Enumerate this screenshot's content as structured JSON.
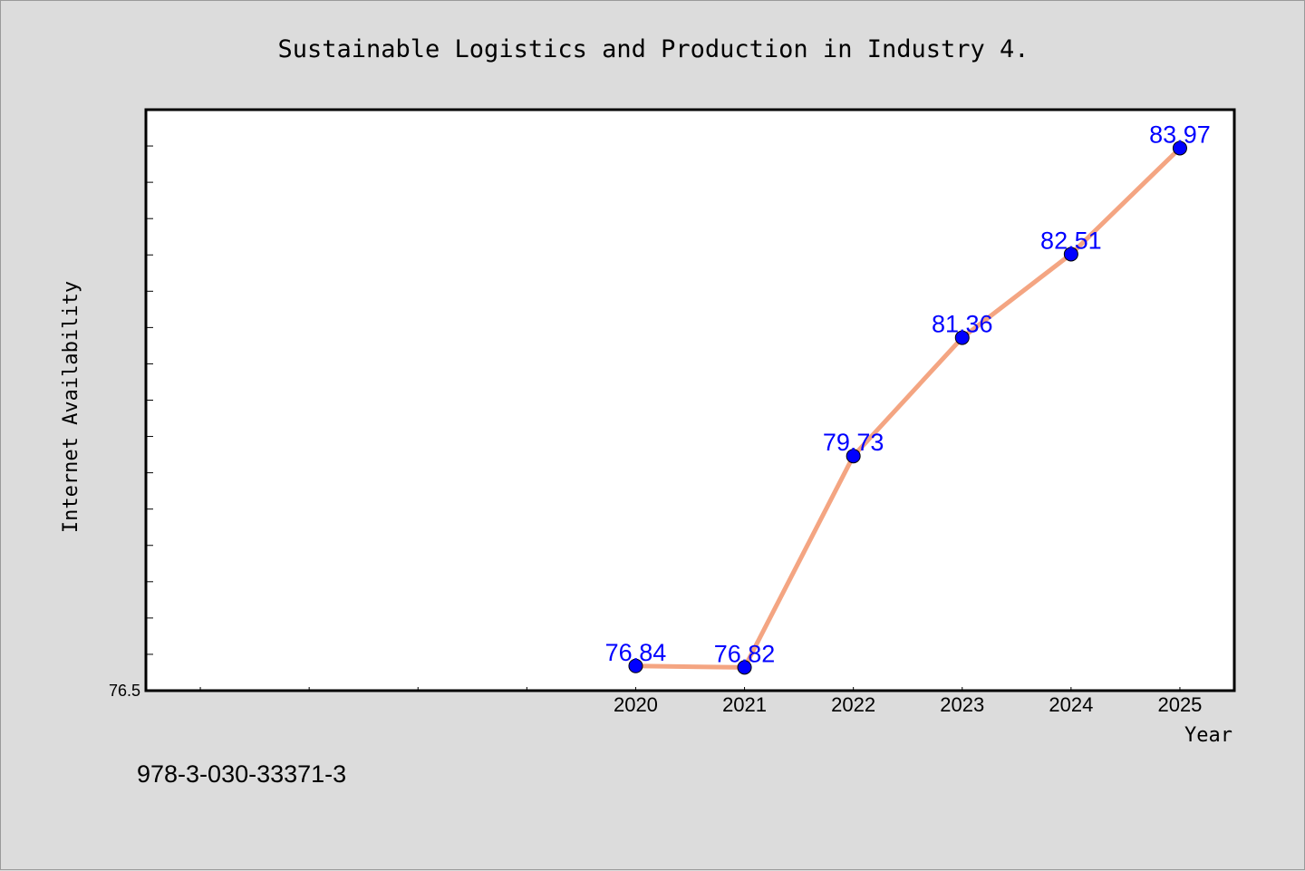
{
  "chart_data": {
    "type": "line",
    "title": "Sustainable Logistics and Production in Industry 4.",
    "xlabel": "Year",
    "ylabel": "Internet Availability",
    "x": [
      2020,
      2021,
      2022,
      2023,
      2024,
      2025
    ],
    "y": [
      76.84,
      76.82,
      79.73,
      81.36,
      82.51,
      83.97
    ],
    "data_labels": [
      "76.84",
      "76.82",
      "79.73",
      "81.36",
      "82.51",
      "83.97"
    ],
    "ylim": [
      76.5,
      84.5
    ],
    "xlim": [
      2015.5,
      2025.5
    ],
    "ytick_labels": [
      "76.5"
    ],
    "xtick_labels": [
      "2020",
      "2021",
      "2022",
      "2023",
      "2024",
      "2025"
    ],
    "line_color": "#f4a582",
    "marker_color": "#0000ff",
    "label_color": "#0000ff",
    "grid": false,
    "legend": "none"
  },
  "footer": {
    "isbn": "978-3-030-33371-3"
  }
}
